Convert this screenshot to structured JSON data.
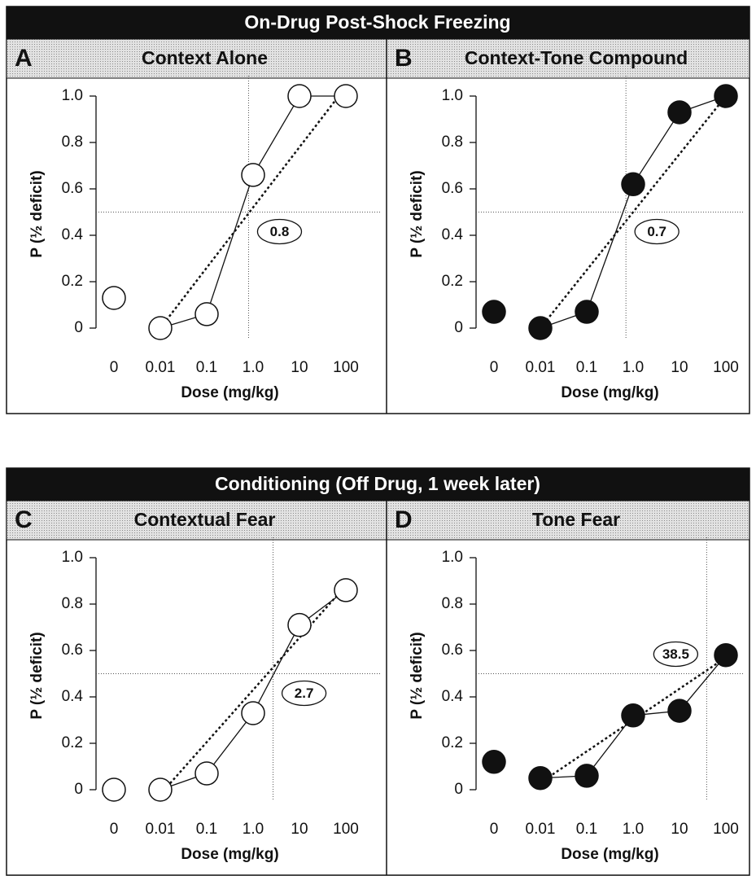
{
  "sections": [
    {
      "title": "On-Drug Post-Shock Freezing"
    },
    {
      "title": "Conditioning (Off Drug, 1 week later)"
    }
  ],
  "chart_data": [
    {
      "type": "line",
      "panel": "A",
      "title": "Context Alone",
      "xlabel": "Dose (mg/kg)",
      "ylabel": "P (½ deficit)",
      "categories": [
        "0",
        "0.01",
        "0.1",
        "1.0",
        "10",
        "100"
      ],
      "values": [
        0.13,
        0,
        0.06,
        0.66,
        1.0,
        1.0
      ],
      "color": "#111111",
      "marker_fill": "#ffffff",
      "fit": {
        "x": [
          "0.01",
          "100"
        ],
        "values": [
          0,
          1.04
        ]
      },
      "threshold": 0.5,
      "ed50": 0.8,
      "ylim": [
        0,
        1
      ],
      "yticks": [
        0,
        0.2,
        0.4,
        0.6,
        0.8,
        {
          "value": 1,
          "label": "1.0"
        }
      ]
    },
    {
      "type": "line",
      "panel": "B",
      "title": "Context-Tone Compound",
      "xlabel": "Dose (mg/kg)",
      "ylabel": "P (½ deficit)",
      "categories": [
        "0",
        "0.01",
        "0.1",
        "1.0",
        "10",
        "100"
      ],
      "values": [
        0.07,
        0,
        0.07,
        0.62,
        0.93,
        1.0
      ],
      "color": "#111111",
      "marker_fill": "#111111",
      "fit": {
        "x": [
          "0.01",
          "100"
        ],
        "values": [
          0,
          1.0
        ]
      },
      "threshold": 0.5,
      "ed50": 0.7,
      "ylim": [
        0,
        1
      ],
      "yticks": [
        0,
        0.2,
        0.4,
        0.6,
        0.8,
        {
          "value": 1,
          "label": "1.0"
        }
      ]
    },
    {
      "type": "line",
      "panel": "C",
      "title": "Contextual Fear",
      "xlabel": "Dose (mg/kg)",
      "ylabel": "P (½ deficit)",
      "categories": [
        "0",
        "0.01",
        "0.1",
        "1.0",
        "10",
        "100"
      ],
      "values": [
        0,
        0,
        0.07,
        0.33,
        0.71,
        0.86
      ],
      "color": "#111111",
      "marker_fill": "#ffffff",
      "fit": {
        "x": [
          "0.01",
          "100"
        ],
        "values": [
          -0.02,
          0.88
        ]
      },
      "threshold": 0.5,
      "ed50": 2.7,
      "ylim": [
        0,
        1
      ],
      "yticks": [
        0,
        0.2,
        0.4,
        0.6,
        0.8,
        {
          "value": 1,
          "label": "1.0"
        }
      ]
    },
    {
      "type": "line",
      "panel": "D",
      "title": "Tone Fear",
      "xlabel": "Dose (mg/kg)",
      "ylabel": "P (½ deficit)",
      "categories": [
        "0",
        "0.01",
        "0.1",
        "1.0",
        "10",
        "100"
      ],
      "values": [
        0.12,
        0.05,
        0.06,
        0.32,
        0.34,
        0.58
      ],
      "color": "#111111",
      "marker_fill": "#111111",
      "fit": {
        "x": [
          "0.01",
          "100"
        ],
        "values": [
          0.03,
          0.57
        ]
      },
      "threshold": 0.5,
      "ed50": 38.5,
      "ylim": [
        0,
        1
      ],
      "yticks": [
        0,
        0.2,
        0.4,
        0.6,
        0.8,
        {
          "value": 1,
          "label": "1.0"
        }
      ]
    }
  ]
}
